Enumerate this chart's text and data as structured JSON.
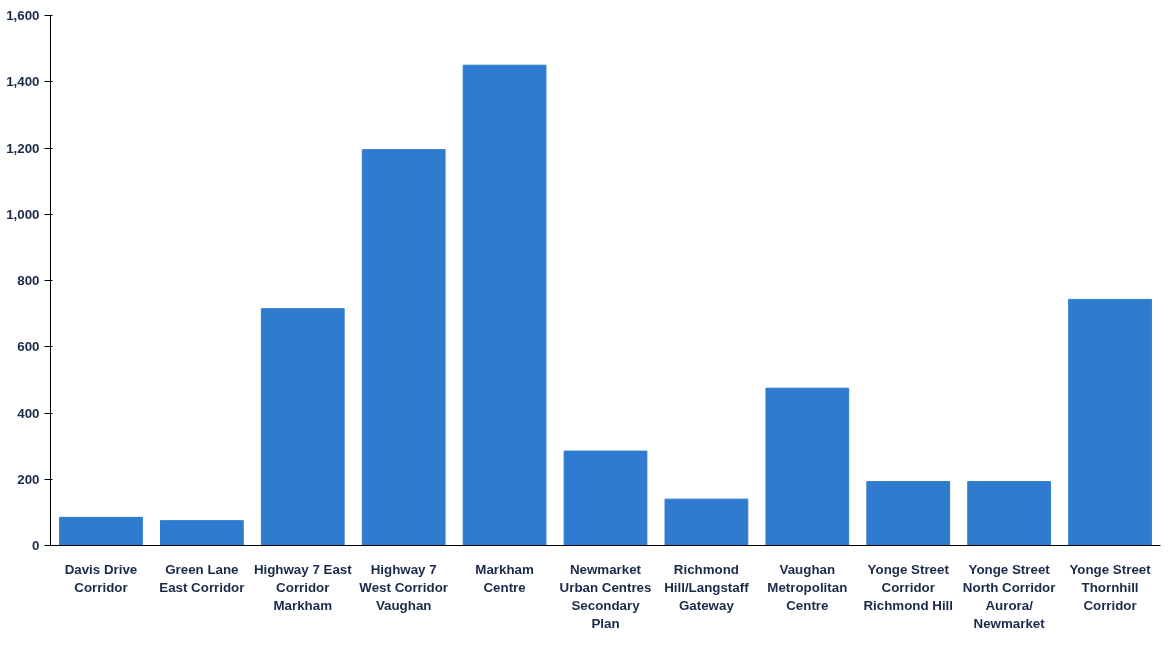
{
  "chart_data": {
    "type": "bar",
    "categories": [
      "Davis Drive\nCorridor",
      "Green Lane\nEast Corridor",
      "Highway 7 East\nCorridor\nMarkham",
      "Highway 7\nWest Corridor\nVaughan",
      "Markham\nCentre",
      "Newmarket\nUrban Centres\nSecondary\nPlan",
      "Richmond\nHill/Langstaff\nGateway",
      "Vaughan\nMetropolitan\nCentre",
      "Yonge Street\nCorridor\nRichmond Hill",
      "Yonge Street\nNorth Corridor\nAurora/\nNewmarket",
      "Yonge Street\nThornhill\nCorridor"
    ],
    "values": [
      85,
      75,
      715,
      1195,
      1450,
      285,
      140,
      475,
      193,
      193,
      743
    ],
    "color": "#2e7bcf",
    "ylim": [
      0,
      1600
    ],
    "yticks": [
      0,
      200,
      400,
      600,
      800,
      {
        "value": 1000,
        "label": "1,000"
      },
      {
        "value": 1200,
        "label": "1,200"
      },
      {
        "value": 1400,
        "label": "1,400"
      },
      {
        "value": 1600,
        "label": "1,600"
      }
    ],
    "grid": false
  }
}
